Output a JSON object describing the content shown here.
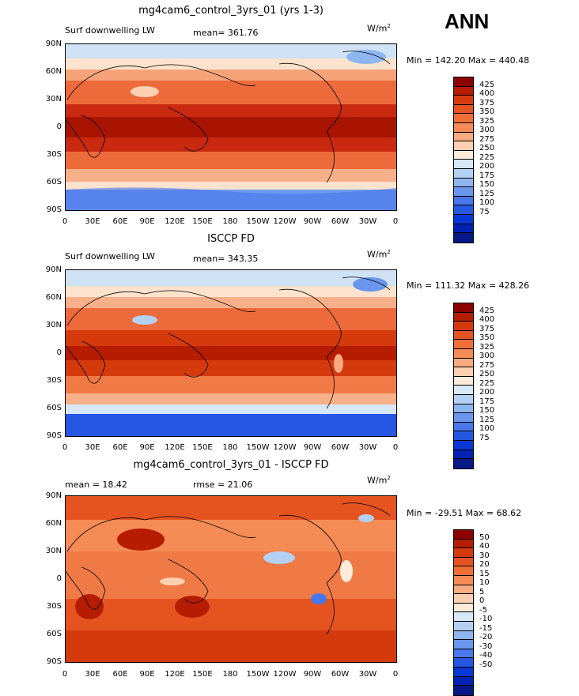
{
  "season": "ANN",
  "units": "W/m",
  "units_sup": "2",
  "panels": [
    {
      "title": "mg4cam6_control_3yrs_01 (yrs 1-3)",
      "left_label": "Surf downwelling LW",
      "mid_label": "mean= 361.76",
      "minmax": "Min = 142.20 Max = 440.48",
      "colors": [
        "#8c0000",
        "#b61c00",
        "#d53a0d",
        "#e55420",
        "#f06e35",
        "#f58b55",
        "#f8ab80",
        "#fcd0b0",
        "#fdebd9",
        "#d7e8f7",
        "#b4d1f3",
        "#8eb6f0",
        "#6a96ee",
        "#4777ea",
        "#2557e3",
        "#0838d7",
        "#0022b4",
        "#061987"
      ],
      "labels": [
        "425",
        "400",
        "375",
        "350",
        "325",
        "300",
        "275",
        "250",
        "225",
        "200",
        "175",
        "150",
        "125",
        "100",
        "75"
      ]
    },
    {
      "title": "ISCCP FD",
      "left_label": "Surf downwelling LW",
      "mid_label": "mean= 343.35",
      "minmax": "Min = 111.32 Max = 428.26",
      "colors": [
        "#8c0000",
        "#b61c00",
        "#d53a0d",
        "#e55420",
        "#f06e35",
        "#f58b55",
        "#f8ab80",
        "#fcd0b0",
        "#fdebd9",
        "#d7e8f7",
        "#b4d1f3",
        "#8eb6f0",
        "#6a96ee",
        "#4777ea",
        "#2557e3",
        "#0838d7",
        "#0022b4",
        "#061987"
      ],
      "labels": [
        "425",
        "400",
        "375",
        "350",
        "325",
        "300",
        "275",
        "250",
        "225",
        "200",
        "175",
        "150",
        "125",
        "100",
        "75"
      ]
    },
    {
      "title": "mg4cam6_control_3yrs_01 - ISCCP FD",
      "left_label": "mean =  18.42",
      "mid_label": "rmse =  21.06",
      "minmax": "Min = -29.51 Max =  68.62",
      "colors": [
        "#8c0000",
        "#b61c00",
        "#d53a0d",
        "#e55420",
        "#f06e35",
        "#f58b55",
        "#f8ab80",
        "#fcd0b0",
        "#fdebd9",
        "#d7e8f7",
        "#b4d1f3",
        "#8eb6f0",
        "#6a96ee",
        "#4777ea",
        "#2557e3",
        "#0838d7",
        "#0022b4",
        "#061987"
      ],
      "labels": [
        "50",
        "40",
        "30",
        "20",
        "15",
        "10",
        "5",
        "0",
        "-5",
        "-10",
        "-15",
        "-20",
        "-30",
        "-40",
        "-50"
      ]
    }
  ],
  "lat_ticks": [
    "90N",
    "60N",
    "30N",
    "0",
    "30S",
    "60S",
    "90S"
  ],
  "lon_ticks": [
    "0",
    "30E",
    "60E",
    "90E",
    "120E",
    "150E",
    "180",
    "150W",
    "120W",
    "90W",
    "60W",
    "30W",
    "0"
  ]
}
